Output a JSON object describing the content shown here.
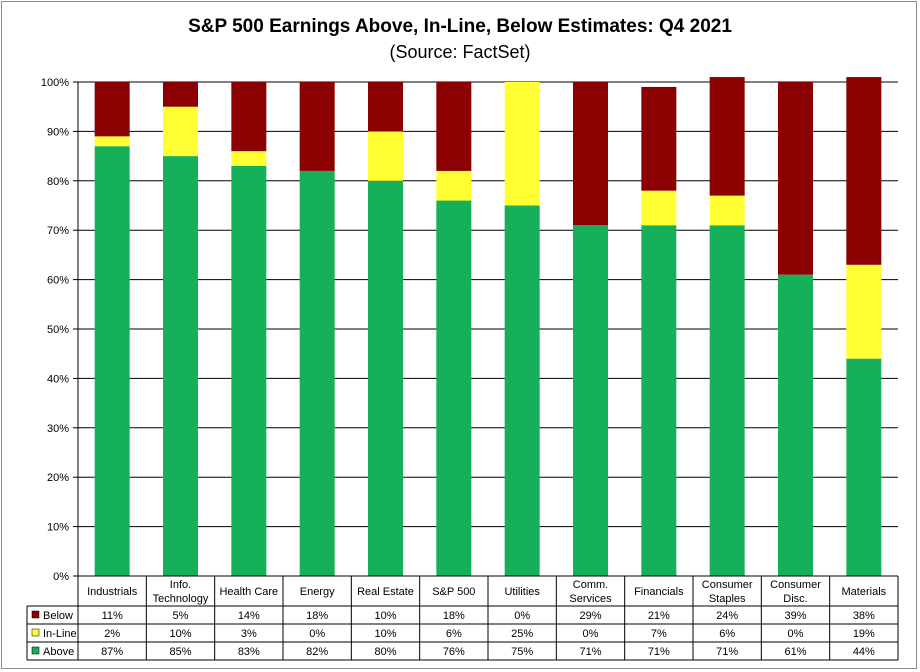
{
  "chart_data": {
    "type": "bar",
    "stacked": true,
    "title": "S&P 500 Earnings Above, In-Line, Below Estimates: Q4 2021",
    "subtitle": "(Source: FactSet)",
    "categories": [
      [
        "Industrials"
      ],
      [
        "Info.",
        "Technology"
      ],
      [
        "Health Care"
      ],
      [
        "Energy"
      ],
      [
        "Real Estate"
      ],
      [
        "S&P 500"
      ],
      [
        "Utilities"
      ],
      [
        "Comm.",
        "Services"
      ],
      [
        "Financials"
      ],
      [
        "Consumer",
        "Staples"
      ],
      [
        "Consumer",
        "Disc."
      ],
      [
        "Materials"
      ]
    ],
    "series": [
      {
        "name": "Below",
        "color": "#8b0000",
        "values": [
          11,
          5,
          14,
          18,
          10,
          18,
          0,
          29,
          21,
          24,
          39,
          38
        ]
      },
      {
        "name": "In-Line",
        "color": "#ffff33",
        "values": [
          2,
          10,
          3,
          0,
          10,
          6,
          25,
          0,
          7,
          6,
          0,
          19
        ]
      },
      {
        "name": "Above",
        "color": "#17b05a",
        "values": [
          87,
          85,
          83,
          82,
          80,
          76,
          75,
          71,
          71,
          71,
          61,
          44
        ]
      }
    ],
    "yticks": [
      "0%",
      "10%",
      "20%",
      "30%",
      "40%",
      "50%",
      "60%",
      "70%",
      "80%",
      "90%",
      "100%"
    ],
    "ylim": [
      0,
      100
    ],
    "grid": true,
    "legend": "data-table"
  }
}
